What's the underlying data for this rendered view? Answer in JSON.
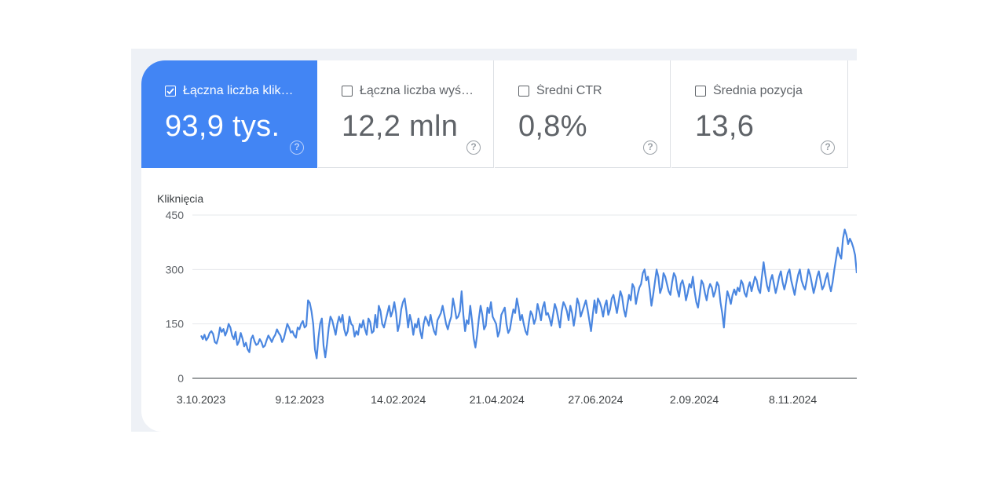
{
  "metrics": [
    {
      "label": "Łączna liczba klik…",
      "value": "93,9 tys.",
      "active": true
    },
    {
      "label": "Łączna liczba wyś…",
      "value": "12,2 mln",
      "active": false
    },
    {
      "label": "Średni CTR",
      "value": "0,8%",
      "active": false
    },
    {
      "label": "Średnia pozycja",
      "value": "13,6",
      "active": false
    }
  ],
  "help_glyph": "?",
  "colors": {
    "accent": "#4285f4",
    "line": "#4a86e0"
  },
  "chart_data": {
    "type": "line",
    "title": "",
    "ylabel": "Kliknięcia",
    "ylim": [
      0,
      450
    ],
    "yticks": [
      0,
      150,
      300,
      450
    ],
    "xticks": [
      "3.10.2023",
      "9.12.2023",
      "14.02.2024",
      "21.04.2024",
      "27.06.2024",
      "2.09.2024",
      "8.11.2024"
    ],
    "x_start": "3.10.2023",
    "x_end": "5.01.2025",
    "grid": true,
    "series": [
      {
        "values": [
          118,
          108,
          120,
          105,
          112,
          125,
          130,
          122,
          100,
          96,
          112,
          140,
          128,
          136,
          118,
          130,
          150,
          140,
          118,
          108,
          128,
          92,
          102,
          125,
          110,
          88,
          98,
          80,
          72,
          108,
          118,
          102,
          92,
          95,
          108,
          100,
          86,
          90,
          105,
          118,
          110,
          100,
          112,
          120,
          135,
          125,
          118,
          100,
          110,
          130,
          150,
          140,
          126,
          130,
          118,
          112,
          140,
          135,
          150,
          158,
          140,
          145,
          215,
          208,
          185,
          150,
          80,
          55,
          110,
          150,
          165,
          90,
          58,
          95,
          140,
          170,
          160,
          140,
          120,
          150,
          170,
          155,
          175,
          135,
          118,
          130,
          170,
          150,
          145,
          115,
          130,
          120,
          150,
          140,
          160,
          135,
          120,
          165,
          155,
          125,
          130,
          175,
          140,
          200,
          185,
          150,
          140,
          160,
          180,
          200,
          170,
          185,
          210,
          180,
          130,
          150,
          190,
          210,
          220,
          185,
          140,
          175,
          155,
          120,
          150,
          140,
          165,
          130,
          110,
          150,
          170,
          160,
          145,
          175,
          150,
          130,
          120,
          160,
          170,
          180,
          200,
          175,
          150,
          135,
          155,
          170,
          220,
          195,
          165,
          170,
          185,
          240,
          175,
          130,
          160,
          150,
          200,
          160,
          110,
          85,
          120,
          165,
          200,
          175,
          135,
          145,
          195,
          180,
          210,
          170,
          160,
          150,
          115,
          130,
          175,
          185,
          195,
          150,
          125,
          135,
          165,
          190,
          180,
          220,
          195,
          160,
          175,
          150,
          130,
          120,
          155,
          185,
          175,
          150,
          165,
          205,
          185,
          160,
          195,
          210,
          175,
          180,
          165,
          145,
          175,
          205,
          190,
          165,
          140,
          185,
          210,
          200,
          185,
          160,
          200,
          180,
          145,
          175,
          220,
          205,
          170,
          185,
          200,
          215,
          190,
          160,
          130,
          175,
          215,
          180,
          220,
          210,
          195,
          170,
          200,
          215,
          175,
          190,
          220,
          230,
          205,
          180,
          210,
          240,
          225,
          190,
          170,
          200,
          230,
          215,
          260,
          250,
          205,
          230,
          250,
          260,
          290,
          300,
          270,
          280,
          245,
          200,
          230,
          265,
          300,
          280,
          235,
          250,
          290,
          280,
          260,
          240,
          230,
          265,
          290,
          280,
          245,
          225,
          260,
          270,
          250,
          215,
          235,
          260,
          250,
          280,
          240,
          210,
          195,
          230,
          270,
          260,
          235,
          215,
          245,
          260,
          250,
          225,
          240,
          265,
          255,
          210,
          180,
          140,
          200,
          240,
          225,
          205,
          230,
          245,
          230,
          250,
          240,
          270,
          260,
          235,
          225,
          250,
          265,
          240,
          260,
          280,
          270,
          245,
          235,
          280,
          320,
          285,
          255,
          240,
          270,
          285,
          260,
          235,
          255,
          280,
          295,
          265,
          245,
          265,
          290,
          300,
          270,
          250,
          230,
          260,
          285,
          300,
          270,
          255,
          245,
          270,
          300,
          285,
          260,
          235,
          255,
          280,
          295,
          270,
          245,
          255,
          275,
          290,
          260,
          240,
          265,
          300,
          330,
          360,
          340,
          330,
          385,
          410,
          395,
          370,
          385,
          375,
          360,
          340,
          290
        ]
      }
    ]
  }
}
